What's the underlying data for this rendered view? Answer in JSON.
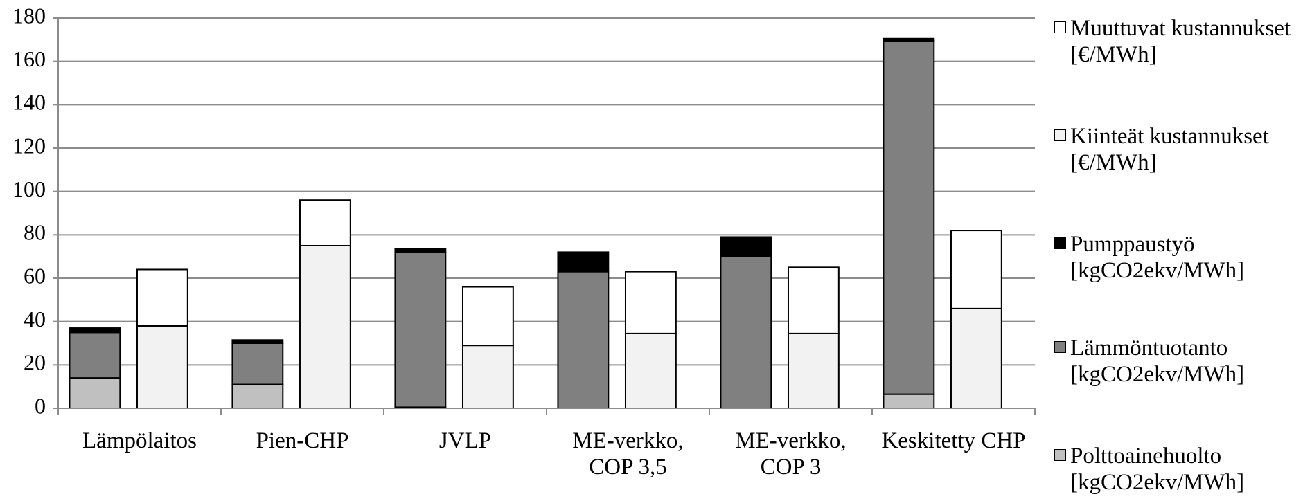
{
  "chart_data": {
    "type": "bar",
    "stacked": true,
    "categories": [
      "Lämpölaitos",
      "Pien-CHP",
      "JVLP",
      "ME-verkko, COP 3,5",
      "ME-verkko, COP 3",
      "Keskitetty CHP"
    ],
    "series": [
      {
        "name": "Polttoainehuolto [kgCO2ekv/MWh]",
        "color": "#c0c0c0",
        "stack": 0,
        "values": [
          14,
          11,
          0.5,
          0,
          0,
          6.5
        ]
      },
      {
        "name": "Lämmöntuotanto [kgCO2ekv/MWh]",
        "color": "#808080",
        "stack": 0,
        "values": [
          21,
          19,
          71.5,
          63,
          70,
          163
        ]
      },
      {
        "name": "Pumppaustyö [kgCO2ekv/MWh]",
        "color": "#000000",
        "stack": 0,
        "values": [
          2,
          1.5,
          1.5,
          9,
          9,
          1
        ]
      },
      {
        "name": "Kiinteät kustannukset [€/MWh]",
        "color": "#f2f2f2",
        "stack": 1,
        "values": [
          38,
          75,
          29,
          34.5,
          34.5,
          46
        ]
      },
      {
        "name": "Muuttuvat kustannukset [€/MWh]",
        "color": "#ffffff",
        "stack": 1,
        "values": [
          26,
          21,
          27,
          28.5,
          30.5,
          36
        ]
      }
    ],
    "ylim": [
      0,
      180
    ],
    "yticks": [
      0,
      20,
      40,
      60,
      80,
      100,
      120,
      140,
      160,
      180
    ],
    "grid": true,
    "legend": "right"
  }
}
